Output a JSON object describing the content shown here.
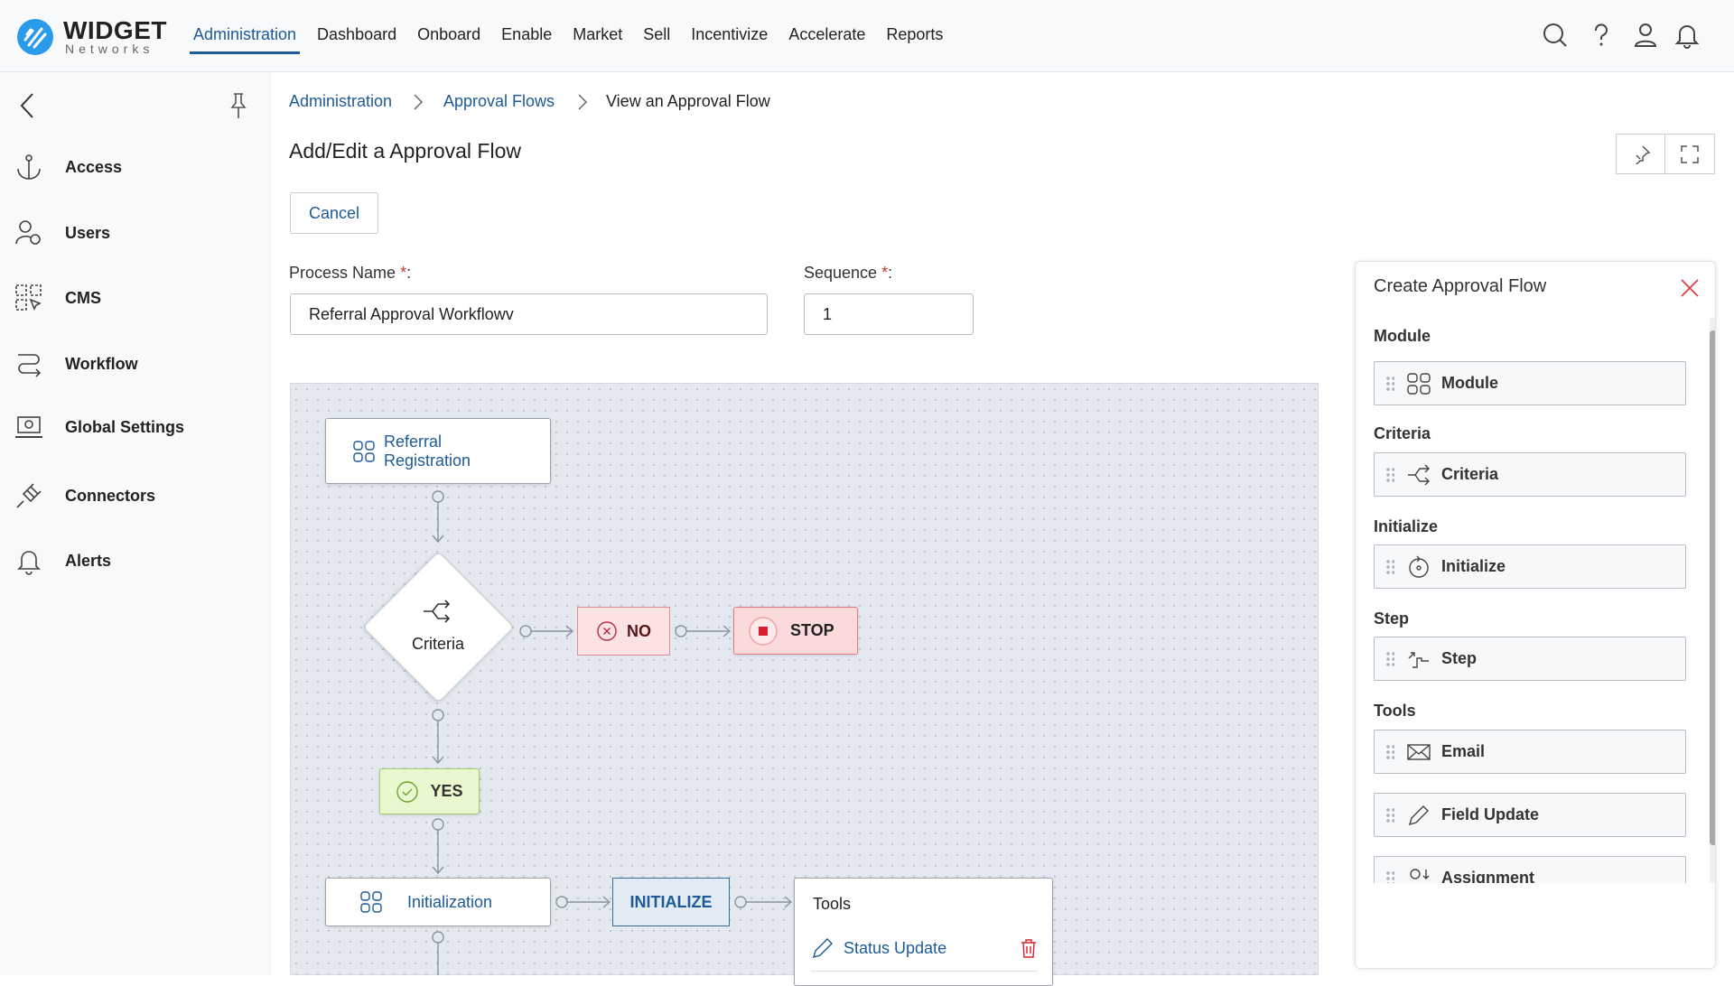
{
  "header": {
    "logo_title": "WIDGET",
    "logo_sub": "Networks",
    "nav": [
      "Administration",
      "Dashboard",
      "Onboard",
      "Enable",
      "Market",
      "Sell",
      "Incentivize",
      "Accelerate",
      "Reports"
    ],
    "active_nav": "Administration"
  },
  "sidebar": {
    "items": [
      {
        "label": "Access",
        "icon": "anchor-icon"
      },
      {
        "label": "Users",
        "icon": "user-gear-icon"
      },
      {
        "label": "CMS",
        "icon": "grid-cursor-icon"
      },
      {
        "label": "Workflow",
        "icon": "workflow-icon"
      },
      {
        "label": "Global Settings",
        "icon": "laptop-gear-icon"
      },
      {
        "label": "Connectors",
        "icon": "plug-icon"
      },
      {
        "label": "Alerts",
        "icon": "bell-icon"
      }
    ]
  },
  "breadcrumb": [
    "Administration",
    "Approval Flows",
    "View an Approval Flow"
  ],
  "page": {
    "title": "Add/Edit a Approval Flow",
    "cancel": "Cancel",
    "process_label": "Process Name",
    "process_value": "Referral Approval Workflowv",
    "sequence_label": "Sequence",
    "sequence_value": "1",
    "required": "*",
    ":": ":"
  },
  "flow": {
    "module_node": "Referral Registration",
    "criteria_node": "Criteria",
    "no": "NO",
    "stop": "STOP",
    "yes": "YES",
    "init_node": "Initialization",
    "initialize": "INITIALIZE",
    "tools_title": "Tools",
    "tool_item": "Status Update"
  },
  "panel": {
    "title": "Create Approval Flow",
    "sections": [
      {
        "label": "Module",
        "items": [
          "Module"
        ]
      },
      {
        "label": "Criteria",
        "items": [
          "Criteria"
        ]
      },
      {
        "label": "Initialize",
        "items": [
          "Initialize"
        ]
      },
      {
        "label": "Step",
        "items": [
          "Step"
        ]
      },
      {
        "label": "Tools",
        "items": [
          "Email",
          "Field Update",
          "Assignment"
        ]
      }
    ]
  },
  "colors": {
    "accent": "#1e5a96",
    "no_bg": "#fbe3e4",
    "stop_bg": "#fbdadc",
    "yes_bg": "#eaf8cf",
    "initialize_bg": "#e3ecf5"
  }
}
